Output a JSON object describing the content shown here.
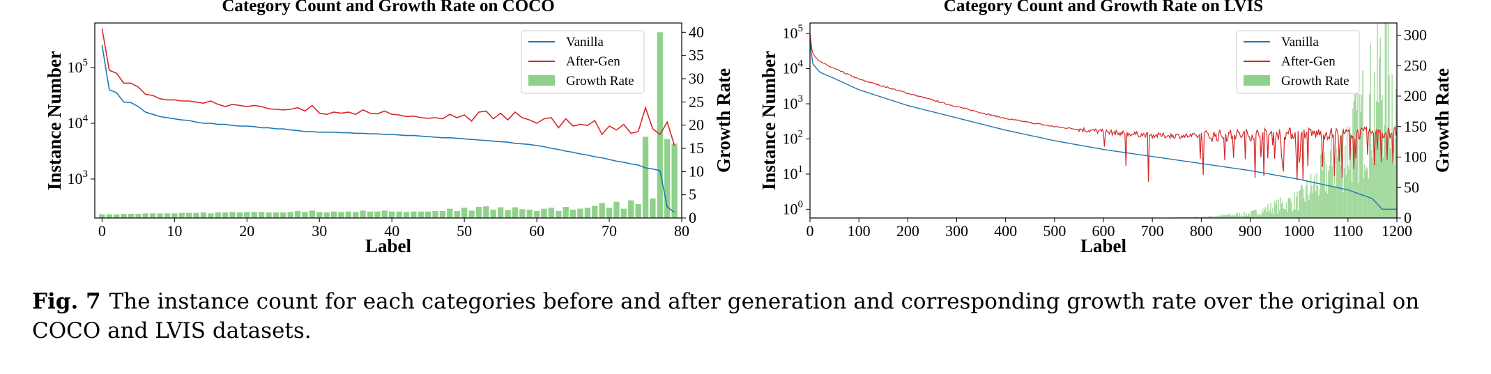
{
  "caption": {
    "label": "Fig. 7",
    "text": "The instance count for each categories before and after generation and corresponding growth rate over the original on COCO and LVIS datasets."
  },
  "colors": {
    "vanilla": "#1f77b4",
    "after_gen": "#d62728",
    "growth": "#8fd18a"
  },
  "chart_data": [
    {
      "type": "line",
      "title": "Category Count and Growth Rate on COCO",
      "xlabel": "Label",
      "ylabel": "Instance Number",
      "y2label": "Growth Rate",
      "xlim": [
        -1,
        80
      ],
      "ylim_log10": [
        2.3,
        5.8
      ],
      "y2lim": [
        0,
        42
      ],
      "yscale": "log",
      "xticks": [
        0,
        10,
        20,
        30,
        40,
        50,
        60,
        70,
        80
      ],
      "yticks": [
        "10^3",
        "10^4",
        "10^5"
      ],
      "y2ticks": [
        0,
        5,
        10,
        15,
        20,
        25,
        30,
        35,
        40
      ],
      "legend": [
        "Vanilla",
        "After-Gen",
        "Growth Rate"
      ],
      "legend_position": "top-right",
      "grid": false,
      "vanilla_log10": [
        5.4,
        4.6,
        4.55,
        4.38,
        4.37,
        4.3,
        4.2,
        4.16,
        4.12,
        4.1,
        4.08,
        4.06,
        4.05,
        4.02,
        4.0,
        4.0,
        3.98,
        3.98,
        3.96,
        3.95,
        3.95,
        3.94,
        3.92,
        3.92,
        3.9,
        3.9,
        3.88,
        3.87,
        3.85,
        3.85,
        3.84,
        3.84,
        3.84,
        3.83,
        3.83,
        3.82,
        3.82,
        3.81,
        3.81,
        3.8,
        3.8,
        3.79,
        3.78,
        3.78,
        3.77,
        3.76,
        3.75,
        3.74,
        3.74,
        3.73,
        3.72,
        3.71,
        3.7,
        3.69,
        3.68,
        3.67,
        3.66,
        3.64,
        3.63,
        3.62,
        3.6,
        3.58,
        3.55,
        3.53,
        3.5,
        3.48,
        3.45,
        3.43,
        3.4,
        3.38,
        3.35,
        3.32,
        3.3,
        3.27,
        3.25,
        3.2,
        3.18,
        3.15,
        2.5,
        2.4
      ],
      "after_gen_log10": [
        5.7,
        4.95,
        4.9,
        4.72,
        4.72,
        4.65,
        4.52,
        4.5,
        4.44,
        4.42,
        4.42,
        4.4,
        4.4,
        4.38,
        4.36,
        4.4,
        4.34,
        4.3,
        4.34,
        4.32,
        4.3,
        4.32,
        4.3,
        4.26,
        4.25,
        4.24,
        4.25,
        4.28,
        4.22,
        4.32,
        4.18,
        4.16,
        4.2,
        4.18,
        4.2,
        4.16,
        4.24,
        4.18,
        4.17,
        4.22,
        4.16,
        4.15,
        4.12,
        4.13,
        4.1,
        4.09,
        4.1,
        4.08,
        4.16,
        4.1,
        4.15,
        4.04,
        4.2,
        4.22,
        4.08,
        4.18,
        4.06,
        4.2,
        4.1,
        4.06,
        4.0,
        4.08,
        4.1,
        3.92,
        4.08,
        3.95,
        3.98,
        3.96,
        4.05,
        3.8,
        3.95,
        3.88,
        3.98,
        3.82,
        3.85,
        4.28,
        3.9,
        3.8,
        4.02,
        3.6
      ],
      "growth_rate": [
        0.8,
        0.8,
        0.8,
        0.9,
        0.9,
        0.9,
        1.0,
        1.0,
        1.0,
        1.0,
        1.0,
        1.1,
        1.1,
        1.1,
        1.2,
        1.0,
        1.2,
        1.2,
        1.3,
        1.2,
        1.3,
        1.3,
        1.3,
        1.2,
        1.2,
        1.2,
        1.3,
        1.5,
        1.3,
        1.6,
        1.3,
        1.2,
        1.4,
        1.3,
        1.4,
        1.3,
        1.6,
        1.4,
        1.4,
        1.6,
        1.4,
        1.4,
        1.3,
        1.4,
        1.4,
        1.4,
        1.5,
        1.5,
        2.0,
        1.5,
        2.2,
        1.6,
        2.4,
        2.5,
        1.8,
        2.3,
        1.7,
        2.3,
        1.9,
        1.8,
        1.5,
        2.0,
        2.2,
        1.5,
        2.4,
        1.8,
        2.0,
        2.2,
        2.6,
        3.2,
        2.2,
        3.5,
        2.0,
        3.8,
        3.0,
        17.5,
        4.2,
        40.0,
        17.0,
        16.0
      ]
    },
    {
      "type": "line",
      "title": "Category Count and Growth Rate on LVIS",
      "xlabel": "Label",
      "ylabel": "Instance Number",
      "y2label": "Growth Rate",
      "xlim": [
        0,
        1200
      ],
      "ylim_log10": [
        -0.25,
        5.3
      ],
      "y2lim": [
        0,
        320
      ],
      "yscale": "log",
      "xticks": [
        0,
        100,
        200,
        300,
        400,
        500,
        600,
        700,
        800,
        900,
        1000,
        1100,
        1200
      ],
      "yticks": [
        "10^0",
        "10^1",
        "10^2",
        "10^3",
        "10^4",
        "10^5"
      ],
      "y2ticks": [
        0,
        50,
        100,
        150,
        200,
        250,
        300
      ],
      "legend": [
        "Vanilla",
        "After-Gen",
        "Growth Rate"
      ],
      "legend_position": "top-right",
      "grid": false,
      "vanilla_points_log10": [
        [
          0,
          4.8
        ],
        [
          5,
          4.15
        ],
        [
          20,
          3.9
        ],
        [
          50,
          3.72
        ],
        [
          100,
          3.4
        ],
        [
          200,
          2.95
        ],
        [
          300,
          2.6
        ],
        [
          400,
          2.25
        ],
        [
          500,
          1.95
        ],
        [
          600,
          1.7
        ],
        [
          700,
          1.5
        ],
        [
          800,
          1.3
        ],
        [
          900,
          1.1
        ],
        [
          1000,
          0.85
        ],
        [
          1050,
          0.7
        ],
        [
          1100,
          0.55
        ],
        [
          1150,
          0.3
        ],
        [
          1170,
          0.0
        ],
        [
          1200,
          0.0
        ]
      ],
      "after_gen_points_log10": [
        [
          0,
          5.0
        ],
        [
          5,
          4.45
        ],
        [
          20,
          4.2
        ],
        [
          50,
          4.0
        ],
        [
          100,
          3.7
        ],
        [
          200,
          3.3
        ],
        [
          300,
          2.92
        ],
        [
          400,
          2.58
        ],
        [
          500,
          2.35
        ],
        [
          600,
          2.2
        ],
        [
          700,
          2.1
        ],
        [
          800,
          2.08
        ],
        [
          900,
          2.12
        ],
        [
          1000,
          2.15
        ],
        [
          1100,
          2.15
        ],
        [
          1200,
          2.18
        ]
      ],
      "growth_rate_points": [
        [
          0,
          0
        ],
        [
          700,
          0
        ],
        [
          800,
          2
        ],
        [
          900,
          8
        ],
        [
          1000,
          35
        ],
        [
          1050,
          80
        ],
        [
          1100,
          140
        ],
        [
          1150,
          220
        ],
        [
          1180,
          290
        ],
        [
          1200,
          200
        ]
      ]
    }
  ]
}
